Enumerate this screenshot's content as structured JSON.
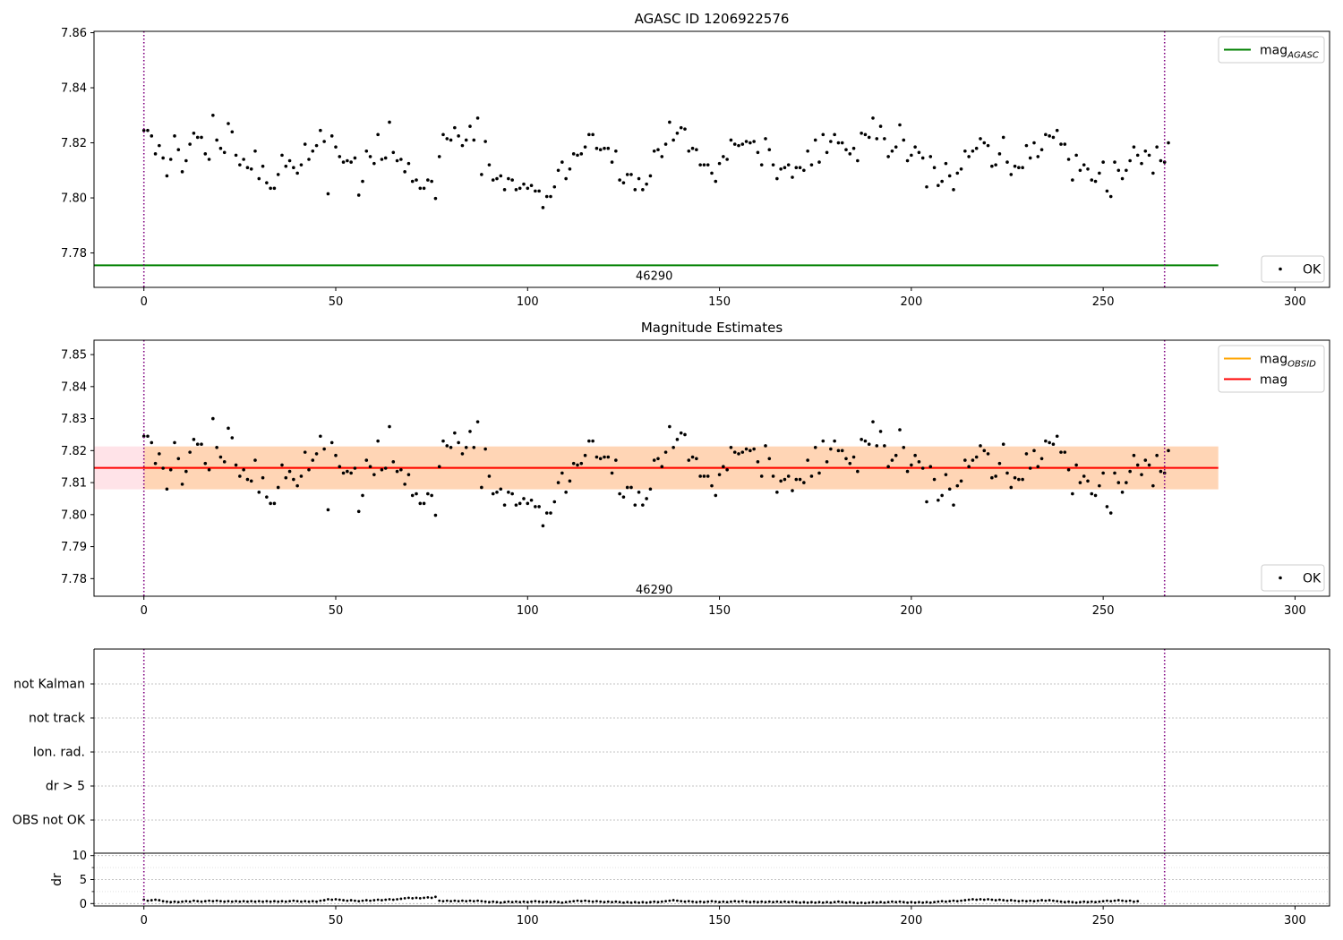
{
  "chart_data": [
    {
      "type": "scatter",
      "title": "AGASC ID 1206922576",
      "xlim": [
        -13,
        309
      ],
      "ylim": [
        7.7675,
        7.8605
      ],
      "xticks": [
        0,
        50,
        100,
        150,
        200,
        250,
        300
      ],
      "yticks": [
        7.78,
        7.8,
        7.82,
        7.84,
        7.86
      ],
      "ytick_decimals": 2,
      "grid": false,
      "annotation": {
        "text": "46290",
        "x": 133,
        "y": 7.7715
      },
      "vlines": [
        0,
        266
      ],
      "series": [
        {
          "name": "OK",
          "kind": "points",
          "source": "mag"
        },
        {
          "name": "mag",
          "label_sub": "AGASC",
          "kind": "hline",
          "y": 7.7755,
          "x_range": [
            -13,
            280
          ],
          "color": "#008000"
        }
      ],
      "legends": [
        {
          "position": "upper-right",
          "items": [
            {
              "base": "mag",
              "sub": "AGASC",
              "kind": "line",
              "color": "#008000"
            }
          ]
        },
        {
          "position": "lower-right",
          "items": [
            {
              "base": "OK",
              "sub": "",
              "kind": "marker",
              "color": "#000000"
            }
          ]
        }
      ]
    },
    {
      "type": "scatter",
      "title": "Magnitude Estimates",
      "xlim": [
        -13,
        309
      ],
      "ylim": [
        7.7745,
        7.8545
      ],
      "xticks": [
        0,
        50,
        100,
        150,
        200,
        250,
        300
      ],
      "yticks": [
        7.78,
        7.79,
        7.8,
        7.81,
        7.82,
        7.83,
        7.84,
        7.85
      ],
      "ytick_decimals": 2,
      "grid": false,
      "annotation": {
        "text": "46290",
        "x": 133,
        "y": 7.7765
      },
      "vlines": [
        0,
        266
      ],
      "bands": [
        {
          "y0": 7.8079,
          "y1": 7.8213,
          "x0": -13,
          "x1": 280,
          "color": "#ffc0cb",
          "opacity": 0.45
        },
        {
          "y0": 7.8079,
          "y1": 7.8213,
          "x0": 0,
          "x1": 280,
          "color": "#ffa500",
          "opacity": 0.22
        }
      ],
      "series": [
        {
          "name": "OK",
          "kind": "points",
          "source": "mag"
        },
        {
          "name": "mag",
          "label_sub": "OBSID",
          "kind": "hline",
          "y": 7.8146,
          "x_range": [
            0,
            266
          ],
          "color": "#ffa500"
        },
        {
          "name": "mag",
          "kind": "hline",
          "y": 7.8146,
          "x_range": [
            -13,
            280
          ],
          "color": "#ff0000"
        }
      ],
      "legends": [
        {
          "position": "upper-right",
          "items": [
            {
              "base": "mag",
              "sub": "OBSID",
              "kind": "line",
              "color": "#ffa500"
            },
            {
              "base": "mag",
              "sub": "",
              "kind": "line",
              "color": "#ff0000"
            }
          ]
        },
        {
          "position": "lower-right",
          "items": [
            {
              "base": "OK",
              "sub": "",
              "kind": "marker",
              "color": "#000000"
            }
          ]
        }
      ]
    },
    {
      "type": "flags",
      "categories": [
        "OBS not OK",
        "dr > 5",
        "Ion. rad.",
        "not track",
        "not Kalman"
      ],
      "xlim": [
        -13,
        309
      ],
      "vlines": [
        0,
        266
      ],
      "grid": true
    },
    {
      "type": "scatter",
      "ylabel": "dr",
      "xlim": [
        -13,
        309
      ],
      "ylim": [
        -0.5,
        10.5
      ],
      "xticks": [
        0,
        50,
        100,
        150,
        200,
        250,
        300
      ],
      "yticks": [
        0,
        5,
        10
      ],
      "vlines": [
        0,
        266
      ],
      "grid": true,
      "series": [
        {
          "name": "dr",
          "kind": "points",
          "source": "dr"
        }
      ]
    }
  ],
  "shared_points": {
    "x_start": 0,
    "mag": [
      7.8245,
      7.8245,
      7.8225,
      7.816,
      7.819,
      7.8145,
      7.808,
      7.814,
      7.8225,
      7.8175,
      7.8095,
      7.8135,
      7.8195,
      7.8235,
      7.822,
      7.822,
      7.816,
      7.814,
      7.83,
      7.821,
      7.818,
      7.8165,
      7.827,
      7.824,
      7.8155,
      7.812,
      7.814,
      7.811,
      7.8105,
      7.817,
      7.807,
      7.8115,
      7.8055,
      7.8035,
      7.8035,
      7.8085,
      7.8155,
      7.8115,
      7.8135,
      7.811,
      7.809,
      7.812,
      7.8195,
      7.814,
      7.817,
      7.819,
      7.8245,
      7.8205,
      7.8015,
      7.8225,
      7.8185,
      7.815,
      7.813,
      7.8135,
      7.813,
      7.8145,
      7.801,
      7.806,
      7.817,
      7.815,
      7.8125,
      7.823,
      7.814,
      7.8145,
      7.8275,
      7.8165,
      7.8135,
      7.814,
      7.8095,
      7.8125,
      7.806,
      7.8065,
      7.8035,
      7.8035,
      7.8065,
      7.806,
      7.7998,
      7.815,
      7.823,
      7.8215,
      7.821,
      7.8255,
      7.8225,
      7.819,
      7.821,
      7.826,
      7.821,
      7.829,
      7.8085,
      7.8205,
      7.812,
      7.8065,
      7.807,
      7.808,
      7.803,
      7.807,
      7.8065,
      7.803,
      7.8035,
      7.805,
      7.8035,
      7.8045,
      7.8025,
      7.8025,
      7.7965,
      7.8005,
      7.8005,
      7.804,
      7.81,
      7.813,
      7.807,
      7.8105,
      7.816,
      7.8155,
      7.816,
      7.8185,
      7.823,
      7.823,
      7.818,
      7.8175,
      7.818,
      7.818,
      7.813,
      7.817,
      7.8065,
      7.8055,
      7.8085,
      7.8085,
      7.803,
      7.807,
      7.803,
      7.805,
      7.808,
      7.817,
      7.8175,
      7.815,
      7.8195,
      7.8275,
      7.821,
      7.8235,
      7.8255,
      7.825,
      7.817,
      7.818,
      7.8175,
      7.812,
      7.812,
      7.812,
      7.809,
      7.806,
      7.8125,
      7.815,
      7.814,
      7.821,
      7.8195,
      7.819,
      7.8195,
      7.8205,
      7.82,
      7.8205,
      7.8165,
      7.812,
      7.8215,
      7.8175,
      7.812,
      7.807,
      7.8105,
      7.811,
      7.812,
      7.8075,
      7.811,
      7.811,
      7.81,
      7.817,
      7.812,
      7.821,
      7.813,
      7.823,
      7.8165,
      7.8205,
      7.823,
      7.82,
      7.82,
      7.8175,
      7.816,
      7.818,
      7.8135,
      7.8235,
      7.823,
      7.822,
      7.829,
      7.8215,
      7.826,
      7.8215,
      7.815,
      7.817,
      7.8185,
      7.8265,
      7.821,
      7.8135,
      7.8155,
      7.8185,
      7.8165,
      7.8145,
      7.804,
      7.815,
      7.811,
      7.8045,
      7.806,
      7.8125,
      7.808,
      7.803,
      7.809,
      7.8105,
      7.817,
      7.815,
      7.817,
      7.818,
      7.8215,
      7.82,
      7.819,
      7.8115,
      7.812,
      7.816,
      7.822,
      7.813,
      7.8085,
      7.8115,
      7.811,
      7.811,
      7.819,
      7.8145,
      7.82,
      7.815,
      7.8175,
      7.823,
      7.8225,
      7.822,
      7.8245,
      7.8195,
      7.8195,
      7.814,
      7.8065,
      7.8155,
      7.81,
      7.812,
      7.8105,
      7.8065,
      7.806,
      7.809,
      7.813,
      7.8025,
      7.8005,
      7.813,
      7.81,
      7.807,
      7.81,
      7.8135,
      7.8185,
      7.8155,
      7.8125,
      7.817,
      7.8155,
      7.809,
      7.8185,
      7.8135,
      7.813,
      7.82
    ],
    "dr": [
      0.8,
      0.6,
      0.7,
      0.8,
      0.7,
      0.5,
      0.4,
      0.3,
      0.4,
      0.3,
      0.4,
      0.5,
      0.4,
      0.6,
      0.5,
      0.4,
      0.5,
      0.6,
      0.5,
      0.6,
      0.5,
      0.4,
      0.5,
      0.4,
      0.5,
      0.4,
      0.5,
      0.4,
      0.5,
      0.4,
      0.5,
      0.4,
      0.5,
      0.4,
      0.5,
      0.4,
      0.5,
      0.4,
      0.5,
      0.6,
      0.5,
      0.4,
      0.5,
      0.4,
      0.5,
      0.4,
      0.6,
      0.7,
      0.9,
      0.8,
      0.9,
      0.8,
      0.7,
      0.6,
      0.7,
      0.6,
      0.5,
      0.6,
      0.7,
      0.6,
      0.7,
      0.8,
      0.7,
      0.8,
      0.9,
      0.8,
      0.9,
      1.0,
      1.1,
      1.2,
      1.1,
      1.2,
      1.1,
      1.2,
      1.3,
      1.2,
      1.4,
      0.6,
      0.5,
      0.6,
      0.5,
      0.6,
      0.5,
      0.6,
      0.5,
      0.6,
      0.5,
      0.6,
      0.5,
      0.4,
      0.3,
      0.4,
      0.3,
      0.2,
      0.3,
      0.4,
      0.3,
      0.4,
      0.3,
      0.4,
      0.3,
      0.4,
      0.5,
      0.4,
      0.3,
      0.4,
      0.3,
      0.4,
      0.3,
      0.2,
      0.3,
      0.4,
      0.5,
      0.6,
      0.5,
      0.6,
      0.5,
      0.4,
      0.5,
      0.4,
      0.3,
      0.4,
      0.3,
      0.4,
      0.3,
      0.2,
      0.3,
      0.2,
      0.3,
      0.2,
      0.3,
      0.2,
      0.3,
      0.4,
      0.3,
      0.4,
      0.5,
      0.6,
      0.7,
      0.6,
      0.5,
      0.4,
      0.5,
      0.4,
      0.3,
      0.4,
      0.3,
      0.4,
      0.5,
      0.4,
      0.3,
      0.4,
      0.3,
      0.4,
      0.5,
      0.4,
      0.5,
      0.4,
      0.3,
      0.4,
      0.3,
      0.4,
      0.3,
      0.4,
      0.3,
      0.4,
      0.3,
      0.4,
      0.3,
      0.4,
      0.3,
      0.2,
      0.3,
      0.2,
      0.3,
      0.2,
      0.3,
      0.2,
      0.3,
      0.2,
      0.3,
      0.4,
      0.3,
      0.2,
      0.3,
      0.2,
      0.1,
      0.2,
      0.1,
      0.2,
      0.3,
      0.2,
      0.3,
      0.2,
      0.3,
      0.4,
      0.3,
      0.4,
      0.3,
      0.2,
      0.3,
      0.2,
      0.3,
      0.2,
      0.3,
      0.2,
      0.3,
      0.4,
      0.5,
      0.4,
      0.5,
      0.6,
      0.5,
      0.6,
      0.7,
      0.8,
      0.9,
      0.8,
      0.9,
      0.8,
      0.9,
      0.8,
      0.7,
      0.8,
      0.7,
      0.6,
      0.7,
      0.6,
      0.5,
      0.6,
      0.5,
      0.6,
      0.5,
      0.6,
      0.7,
      0.6,
      0.7,
      0.6,
      0.5,
      0.4,
      0.3,
      0.4,
      0.3,
      0.2,
      0.3,
      0.4,
      0.3,
      0.4,
      0.3,
      0.4,
      0.5,
      0.6,
      0.5,
      0.6,
      0.7,
      0.6,
      0.5,
      0.6,
      0.4,
      0.5
    ]
  }
}
